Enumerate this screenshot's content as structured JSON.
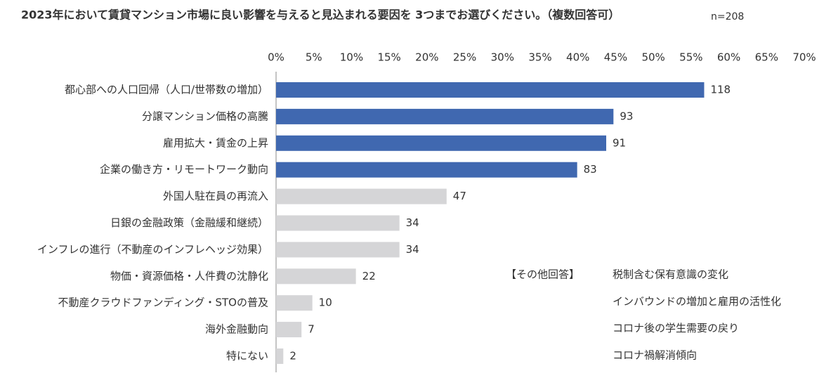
{
  "chart_data": {
    "type": "hbar",
    "title": "2023年において賃貸マンション市場に良い影響を与えると見込まれる要因を 3つまでお選びください。（複数回答可）",
    "subtitle": "n=208",
    "categories": [
      "都心部への人口回帰（人口/世帯数の増加）",
      "分譲マンション価格の高騰",
      "雇用拡大・賃金の上昇",
      "企業の働き方・リモートワーク動向",
      "外国人駐在員の再流入",
      "日銀の金融政策（金融緩和継続）",
      "インフレの進行（不動産のインフレヘッジ効果）",
      "物価・資源価格・人件費の沈静化",
      "不動産クラウドファンディング・STOの普及",
      "海外金融動向",
      "特にない"
    ],
    "values": [
      56.73,
      44.71,
      43.75,
      39.9,
      22.6,
      16.35,
      16.35,
      10.58,
      4.81,
      3.37,
      0.96
    ],
    "value_labels": [
      "118",
      "93",
      "91",
      "83",
      "47",
      "34",
      "34",
      "22",
      "10",
      "7",
      "2"
    ],
    "colors": [
      "#4068b0",
      "#4068b0",
      "#4068b0",
      "#4068b0",
      "#d5d5d7",
      "#d5d5d7",
      "#d5d5d7",
      "#d5d5d7",
      "#d5d5d7",
      "#d5d5d7",
      "#d5d5d7"
    ],
    "xlim": [
      0,
      70
    ],
    "xticks": [
      {
        "value": 0,
        "label": "0%"
      },
      {
        "value": 5,
        "label": "5%"
      },
      {
        "value": 10,
        "label": "10%"
      },
      {
        "value": 15,
        "label": "15%"
      },
      {
        "value": 20,
        "label": "20%"
      },
      {
        "value": 25,
        "label": "25%"
      },
      {
        "value": 30,
        "label": "30%"
      },
      {
        "value": 35,
        "label": "35%"
      },
      {
        "value": 40,
        "label": "40%"
      },
      {
        "value": 45,
        "label": "45%"
      },
      {
        "value": 50,
        "label": "50%"
      },
      {
        "value": 55,
        "label": "55%"
      },
      {
        "value": 60,
        "label": "60%"
      },
      {
        "value": 65,
        "label": "65%"
      },
      {
        "value": 70,
        "label": "70%"
      }
    ],
    "annotation": {
      "heading": "【その他回答】",
      "items": [
        "税制含む保有意識の変化",
        "インバウンドの増加と雇用の活性化",
        "コロナ後の学生需要の戻り",
        "コロナ禍解消傾向"
      ]
    }
  }
}
